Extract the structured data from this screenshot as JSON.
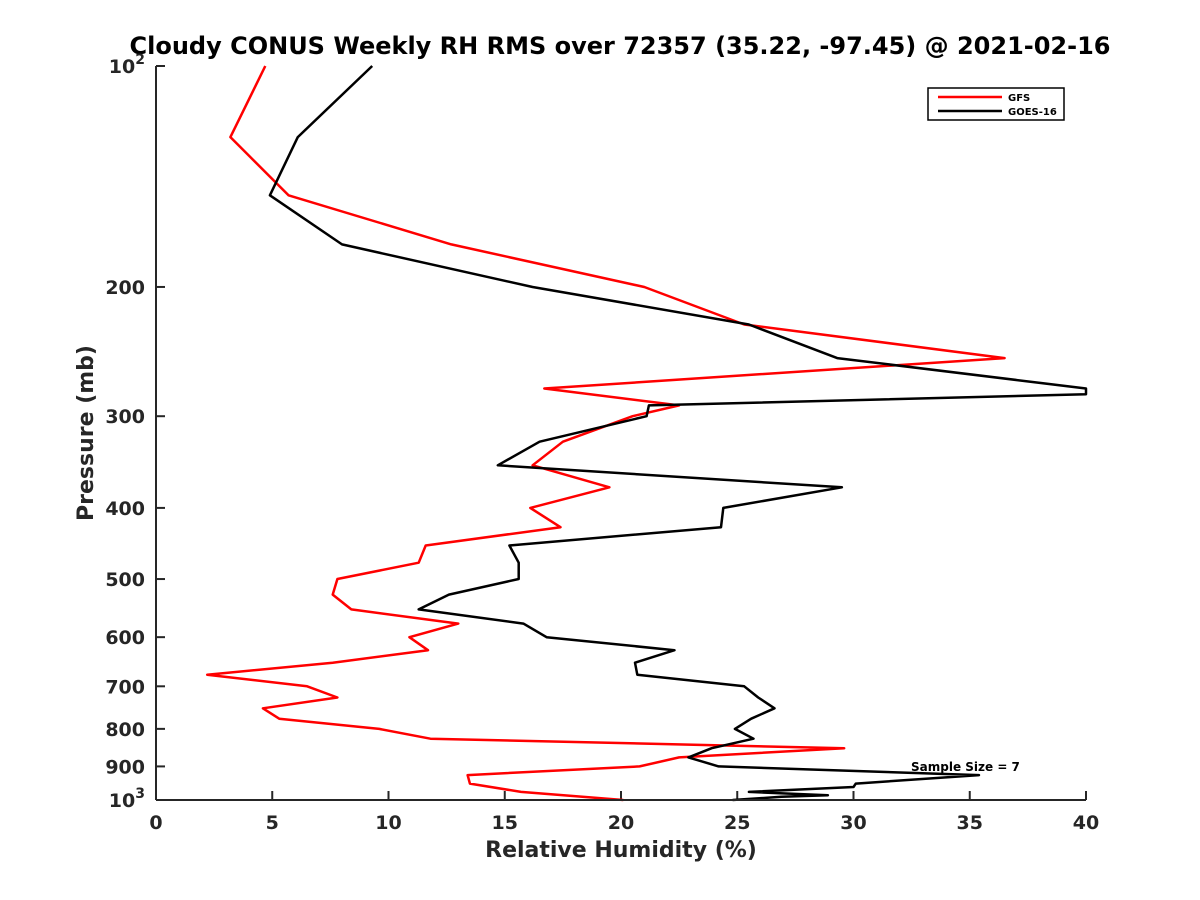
{
  "chart_data": {
    "type": "line",
    "title": "Cloudy CONUS Weekly RH RMS over 72357 (35.22, -97.45) @ 2021-02-16",
    "xlabel": "Relative Humidity (%)",
    "ylabel": "Pressure (mb)",
    "xlim": [
      0,
      40
    ],
    "ylim": [
      100,
      1000
    ],
    "y_scale": "log",
    "y_reversed": true,
    "grid": false,
    "legend_position": "top-right",
    "x_ticks": [
      "0",
      "5",
      "10",
      "15",
      "20",
      "25",
      "30",
      "35",
      "40"
    ],
    "y_ticks": [
      {
        "value": 100,
        "base": "10",
        "exp": "2"
      },
      {
        "value": 200,
        "label": "200"
      },
      {
        "value": 300,
        "label": "300"
      },
      {
        "value": 400,
        "label": "400"
      },
      {
        "value": 500,
        "label": "500"
      },
      {
        "value": 600,
        "label": "600"
      },
      {
        "value": 700,
        "label": "700"
      },
      {
        "value": 800,
        "label": "800"
      },
      {
        "value": 900,
        "label": "900"
      },
      {
        "value": 1000,
        "base": "10",
        "exp": "3"
      }
    ],
    "annotation": "Sample Size = 7",
    "series": [
      {
        "name": "GFS",
        "color": "#ff0000",
        "points": [
          [
            4.7,
            100
          ],
          [
            3.2,
            125
          ],
          [
            5.7,
            150
          ],
          [
            12.7,
            175
          ],
          [
            21,
            200
          ],
          [
            25.3,
            225
          ],
          [
            36.5,
            250
          ],
          [
            16.7,
            275
          ],
          [
            22.5,
            290
          ],
          [
            20.5,
            300
          ],
          [
            17.5,
            325
          ],
          [
            16.2,
            350
          ],
          [
            19.5,
            375
          ],
          [
            16.1,
            400
          ],
          [
            17.4,
            425
          ],
          [
            11.6,
            450
          ],
          [
            11.3,
            475
          ],
          [
            7.8,
            500
          ],
          [
            7.6,
            525
          ],
          [
            8.4,
            550
          ],
          [
            13,
            575
          ],
          [
            10.9,
            600
          ],
          [
            11.7,
            625
          ],
          [
            7.6,
            650
          ],
          [
            2.2,
            675
          ],
          [
            6.5,
            700
          ],
          [
            7.8,
            725
          ],
          [
            4.6,
            750
          ],
          [
            5.3,
            775
          ],
          [
            9.6,
            800
          ],
          [
            11.8,
            825
          ],
          [
            29.6,
            850
          ],
          [
            22.5,
            875
          ],
          [
            20.8,
            900
          ],
          [
            13.4,
            925
          ],
          [
            13.5,
            950
          ],
          [
            15.7,
            975
          ],
          [
            20.1,
            1000
          ]
        ]
      },
      {
        "name": "GOES-16",
        "color": "#000000",
        "points": [
          [
            9.3,
            100
          ],
          [
            6.1,
            125
          ],
          [
            4.9,
            150
          ],
          [
            8,
            175
          ],
          [
            16.2,
            200
          ],
          [
            25.5,
            225
          ],
          [
            29.3,
            250
          ],
          [
            40,
            275
          ],
          [
            40,
            280
          ],
          [
            21.2,
            290
          ],
          [
            21.1,
            300
          ],
          [
            16.5,
            325
          ],
          [
            14.7,
            350
          ],
          [
            29.5,
            375
          ],
          [
            24.4,
            400
          ],
          [
            24.3,
            425
          ],
          [
            15.2,
            450
          ],
          [
            15.6,
            475
          ],
          [
            15.6,
            500
          ],
          [
            12.6,
            525
          ],
          [
            11.3,
            550
          ],
          [
            15.8,
            575
          ],
          [
            16.8,
            600
          ],
          [
            22.3,
            625
          ],
          [
            20.6,
            650
          ],
          [
            20.7,
            675
          ],
          [
            25.3,
            700
          ],
          [
            25.9,
            725
          ],
          [
            26.6,
            750
          ],
          [
            25.6,
            775
          ],
          [
            24.9,
            800
          ],
          [
            25.7,
            825
          ],
          [
            23.9,
            850
          ],
          [
            22.9,
            875
          ],
          [
            24.2,
            900
          ],
          [
            35.4,
            925
          ],
          [
            30.1,
            950
          ],
          [
            30.0,
            960
          ],
          [
            25.5,
            975
          ],
          [
            28.9,
            985
          ],
          [
            26.9,
            990
          ],
          [
            24.8,
            1000
          ]
        ]
      }
    ]
  }
}
